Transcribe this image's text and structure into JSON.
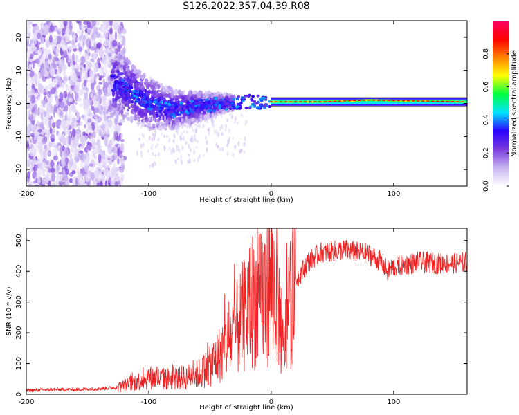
{
  "title": "S126.2022.357.04.39.R08",
  "chart_data": [
    {
      "type": "heatmap",
      "xlabel": "Height of straight line (km)",
      "ylabel": "Frequency (Hz)",
      "xlim": [
        -200,
        160
      ],
      "ylim": [
        -25,
        25
      ],
      "xticks": [
        "-200",
        "-100",
        "0",
        "100"
      ],
      "yticks": [
        "-20",
        "-10",
        "0",
        "10",
        "20"
      ],
      "colorbar": {
        "label": "Normalized spectral amplitude",
        "range": [
          0,
          1
        ],
        "ticks": [
          "0.0",
          "0.2",
          "0.4",
          "0.6",
          "0.8"
        ],
        "colors": [
          "#ffffff",
          "#c8b4f0",
          "#7a3bdc",
          "#2a00ff",
          "#00e5ff",
          "#00ff40",
          "#ffff00",
          "#ff8000",
          "#ff0000",
          "#ff0066"
        ]
      },
      "ridge": [
        {
          "x": -150,
          "f": 8
        },
        {
          "x": -120,
          "f": 5
        },
        {
          "x": -100,
          "f": 0
        },
        {
          "x": -80,
          "f": -2
        },
        {
          "x": -60,
          "f": -1
        },
        {
          "x": -40,
          "f": 0
        },
        {
          "x": -20,
          "f": 0.5
        },
        {
          "x": 0,
          "f": 0.5
        },
        {
          "x": 40,
          "f": 0.5
        },
        {
          "x": 80,
          "f": 1
        },
        {
          "x": 160,
          "f": 0.5
        }
      ]
    },
    {
      "type": "line",
      "xlabel": "Height of straight line (km)",
      "ylabel": "SNR (10 * v/v)",
      "xlim": [
        -200,
        160
      ],
      "ylim": [
        0,
        540
      ],
      "xticks": [
        "-200",
        "-100",
        "0",
        "100"
      ],
      "yticks": [
        "0",
        "100",
        "200",
        "300",
        "400",
        "500"
      ],
      "color": "#ee2222",
      "series": [
        {
          "x": [
            -200,
            -180,
            -160,
            -140,
            -125,
            -110,
            -100,
            -90,
            -80,
            -70,
            -60,
            -50,
            -40,
            -30,
            -20,
            -15,
            -10,
            -5,
            0,
            5,
            10,
            15,
            20,
            30,
            40,
            60,
            80,
            90,
            95,
            100,
            120,
            140,
            160
          ],
          "values": [
            12,
            15,
            15,
            18,
            22,
            40,
            55,
            50,
            50,
            55,
            65,
            90,
            140,
            200,
            270,
            310,
            300,
            330,
            360,
            330,
            130,
            300,
            370,
            430,
            460,
            470,
            455,
            430,
            400,
            415,
            430,
            425,
            430
          ]
        }
      ]
    }
  ]
}
